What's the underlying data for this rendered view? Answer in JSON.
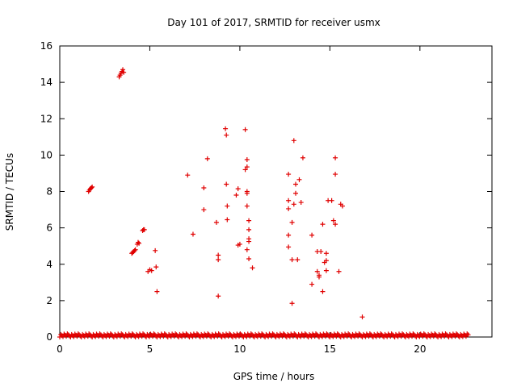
{
  "chart_data": {
    "type": "scatter",
    "title": "Day 101 of 2017, SRMTID for receiver usmx",
    "xlabel": "GPS time / hours",
    "ylabel": "SRMTID / TECUs",
    "xlim": [
      0,
      24
    ],
    "ylim": [
      0,
      16
    ],
    "xticks": [
      0,
      5,
      10,
      15,
      20
    ],
    "yticks": [
      0,
      2,
      4,
      6,
      8,
      10,
      12,
      14,
      16
    ],
    "grid": false,
    "legend": "none",
    "marker": "plus",
    "color": "#e00000",
    "baseline": {
      "description_in_units": "dense points near zero",
      "x_ranges": [
        [
          0,
          22.7
        ]
      ],
      "y_range": [
        0,
        0.2
      ],
      "step": 0.06
    },
    "series": [
      {
        "points": [
          [
            1.6,
            8.0
          ],
          [
            1.65,
            8.08
          ],
          [
            1.7,
            8.15
          ],
          [
            1.75,
            8.2
          ],
          [
            1.8,
            8.25
          ],
          [
            3.3,
            14.3
          ],
          [
            3.35,
            14.4
          ],
          [
            3.4,
            14.5
          ],
          [
            3.45,
            14.6
          ],
          [
            3.5,
            14.7
          ],
          [
            3.55,
            14.55
          ],
          [
            4.0,
            4.6
          ],
          [
            4.05,
            4.65
          ],
          [
            4.1,
            4.7
          ],
          [
            4.15,
            4.75
          ],
          [
            4.2,
            4.8
          ],
          [
            4.3,
            5.1
          ],
          [
            4.35,
            5.2
          ],
          [
            4.4,
            5.15
          ],
          [
            4.6,
            5.85
          ],
          [
            4.65,
            5.9
          ],
          [
            4.7,
            5.9
          ],
          [
            4.9,
            3.6
          ],
          [
            5.0,
            3.7
          ],
          [
            5.1,
            3.65
          ],
          [
            5.3,
            4.75
          ],
          [
            5.35,
            3.85
          ],
          [
            5.4,
            2.5
          ],
          [
            7.1,
            8.9
          ],
          [
            7.4,
            5.65
          ],
          [
            8.0,
            8.2
          ],
          [
            8.0,
            7.0
          ],
          [
            8.2,
            9.8
          ],
          [
            8.7,
            6.3
          ],
          [
            8.8,
            4.5
          ],
          [
            8.8,
            4.25
          ],
          [
            8.8,
            2.25
          ],
          [
            9.2,
            11.45
          ],
          [
            9.25,
            11.1
          ],
          [
            9.25,
            8.4
          ],
          [
            9.3,
            7.2
          ],
          [
            9.3,
            6.45
          ],
          [
            9.8,
            7.8
          ],
          [
            9.9,
            8.15
          ],
          [
            9.9,
            5.05
          ],
          [
            10.0,
            5.1
          ],
          [
            10.3,
            11.4
          ],
          [
            10.3,
            9.2
          ],
          [
            10.4,
            9.75
          ],
          [
            10.4,
            8.0
          ],
          [
            10.4,
            7.9
          ],
          [
            10.4,
            7.2
          ],
          [
            10.5,
            5.9
          ],
          [
            10.5,
            5.4
          ],
          [
            10.4,
            4.8
          ],
          [
            10.5,
            4.3
          ],
          [
            10.5,
            6.4
          ],
          [
            10.7,
            3.8
          ],
          [
            10.4,
            9.35
          ],
          [
            10.5,
            5.25
          ],
          [
            12.7,
            8.95
          ],
          [
            12.7,
            7.5
          ],
          [
            12.7,
            7.05
          ],
          [
            12.7,
            5.6
          ],
          [
            12.7,
            4.95
          ],
          [
            12.9,
            4.25
          ],
          [
            12.9,
            1.85
          ],
          [
            12.9,
            6.3
          ],
          [
            13.0,
            7.3
          ],
          [
            13.0,
            10.8
          ],
          [
            13.1,
            8.4
          ],
          [
            13.1,
            7.9
          ],
          [
            13.2,
            4.25
          ],
          [
            13.3,
            8.65
          ],
          [
            13.4,
            7.4
          ],
          [
            13.5,
            9.85
          ],
          [
            14.0,
            5.6
          ],
          [
            14.0,
            2.9
          ],
          [
            14.3,
            4.7
          ],
          [
            14.3,
            3.6
          ],
          [
            14.4,
            3.4
          ],
          [
            14.4,
            3.3
          ],
          [
            14.5,
            4.7
          ],
          [
            14.6,
            2.5
          ],
          [
            14.6,
            6.2
          ],
          [
            14.7,
            4.1
          ],
          [
            14.8,
            4.6
          ],
          [
            14.8,
            4.2
          ],
          [
            14.8,
            3.65
          ],
          [
            14.9,
            7.5
          ],
          [
            15.1,
            7.5
          ],
          [
            15.2,
            6.4
          ],
          [
            15.3,
            6.2
          ],
          [
            15.3,
            8.95
          ],
          [
            15.3,
            9.85
          ],
          [
            15.6,
            7.3
          ],
          [
            15.7,
            7.2
          ],
          [
            15.5,
            3.6
          ],
          [
            16.8,
            1.1
          ]
        ]
      }
    ]
  }
}
